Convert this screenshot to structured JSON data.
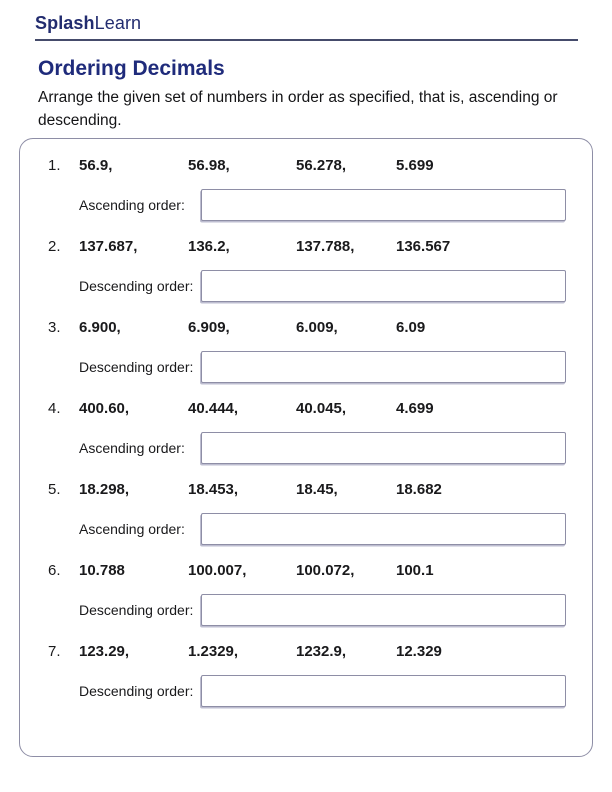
{
  "brand": {
    "splash": "Splash",
    "learn": "Learn"
  },
  "page": {
    "title": "Ordering Decimals",
    "instructions": "Arrange the given set of numbers in order as specified, that is, ascending or descending."
  },
  "colors": {
    "brand_navy": "#222c6f",
    "title_navy": "#1f2b7b",
    "text_ink": "#1a1a1c",
    "box_border": "#8e8ea6",
    "divider": "#454b6b"
  },
  "problems": [
    {
      "num": "1.",
      "values": [
        "56.9,",
        "56.98,",
        "56.278,",
        "5.699"
      ],
      "label": "Ascending order:",
      "answer": ""
    },
    {
      "num": "2.",
      "values": [
        "137.687,",
        "136.2,",
        "137.788,",
        "136.567"
      ],
      "label": "Descending order:",
      "answer": ""
    },
    {
      "num": "3.",
      "values": [
        "6.900,",
        "6.909,",
        "6.009,",
        "6.09"
      ],
      "label": "Descending order:",
      "answer": ""
    },
    {
      "num": "4.",
      "values": [
        "400.60,",
        "40.444,",
        "40.045,",
        "4.699"
      ],
      "label": "Ascending order:",
      "answer": ""
    },
    {
      "num": "5.",
      "values": [
        "18.298,",
        "18.453,",
        "18.45,",
        "18.682"
      ],
      "label": "Ascending order:",
      "answer": ""
    },
    {
      "num": "6.",
      "values": [
        "10.788",
        "100.007,",
        "100.072,",
        "100.1"
      ],
      "label": "Descending order:",
      "answer": ""
    },
    {
      "num": "7.",
      "values": [
        "123.29,",
        "1.2329,",
        "1232.9,",
        "12.329"
      ],
      "label": "Descending order:",
      "answer": ""
    }
  ]
}
